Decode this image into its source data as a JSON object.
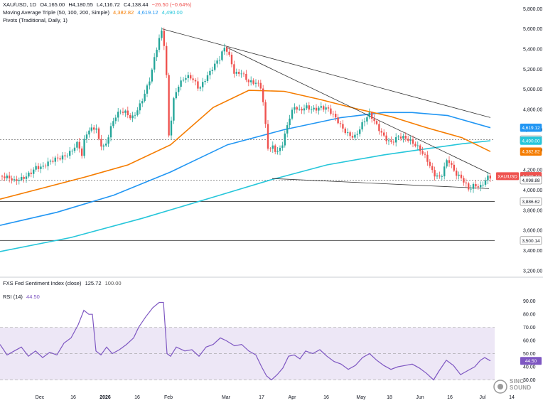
{
  "header": {
    "symbol_line": {
      "symbol": "XAU/USD, 1D",
      "open": "O4,165.00",
      "high": "H4,180.55",
      "low": "L4,116.72",
      "close": "C4,138.44",
      "change": "−26.50 (−0.64%)"
    },
    "ma_line": {
      "label": "Moving Average Triple (50, 100, 200, Simple)",
      "ma50": "4,382.82",
      "ma100": "4,619.12",
      "ma200": "4,490.00"
    },
    "pivots_label": "Pivots (Traditional, Daily, 1)",
    "sentiment_line": {
      "label": "FXS Fed Sentiment Index (close)",
      "value": "125.72",
      "ref": "100.00"
    },
    "rsi_line": {
      "label": "RSI (14)",
      "value": "44.50"
    }
  },
  "colors": {
    "up": "#26a69a",
    "down": "#ef5350",
    "ma50": "#f57c00",
    "ma100": "#2196f3",
    "ma200": "#26c6da",
    "rsi": "#7e57c2",
    "rsi_band": "#ede7f6",
    "trendline": "#333333"
  },
  "watermark": {
    "brand": "SINO SOUND"
  },
  "chart_data": [
    {
      "type": "candlestick",
      "title": "XAU/USD, 1D",
      "y_ticks": [
        "5,800.00",
        "5,600.00",
        "5,400.00",
        "5,200.00",
        "5,000.00",
        "4,800.00",
        "4,600.00",
        "4,400.00",
        "4,200.00",
        "4,000.00",
        "3,800.00",
        "3,600.00",
        "3,400.00",
        "3,200.00"
      ],
      "ylim": [
        3150,
        5830
      ],
      "x_ticks": [
        "Dec",
        "16",
        "2026",
        "16",
        "Feb",
        "Mar",
        "17",
        "Apr",
        "16",
        "May",
        "18",
        "Jun",
        "16",
        "Jul",
        "14"
      ],
      "price_labels": [
        {
          "value": 4619.12,
          "text": "4,619.12",
          "series": "ma100"
        },
        {
          "value": 4500.0,
          "text": "4,500.00",
          "series": "pivot"
        },
        {
          "value": 4490.0,
          "text": "4,490.00",
          "series": "ma200"
        },
        {
          "value": 4382.82,
          "text": "4,382.82",
          "series": "ma50"
        },
        {
          "value": 4138.44,
          "text": "4,138.44",
          "series": "price",
          "tag": "XAU/USD"
        },
        {
          "value": 4098.88,
          "text": "4,098.88",
          "series": "pivot"
        },
        {
          "value": 3886.62,
          "text": "3,886.62",
          "series": "pivot"
        },
        {
          "value": 3500.14,
          "text": "3,500.14",
          "series": "pivot"
        }
      ],
      "horizontal_levels": [
        4500.0,
        4098.88,
        3886.62,
        3500.14
      ],
      "close_path": [
        [
          0,
          4150
        ],
        [
          10,
          4100
        ],
        [
          20,
          4060
        ],
        [
          30,
          4120
        ],
        [
          40,
          4190
        ],
        [
          50,
          4240
        ],
        [
          60,
          4200
        ],
        [
          70,
          4250
        ],
        [
          80,
          4320
        ],
        [
          90,
          4370
        ],
        [
          100,
          4400
        ],
        [
          110,
          4450
        ],
        [
          115,
          4300
        ],
        [
          120,
          4520
        ],
        [
          128,
          4600
        ],
        [
          135,
          4650
        ],
        [
          140,
          4500
        ],
        [
          148,
          4450
        ],
        [
          155,
          4600
        ],
        [
          162,
          4700
        ],
        [
          170,
          4750
        ],
        [
          178,
          4760
        ],
        [
          185,
          4730
        ],
        [
          195,
          4850
        ],
        [
          205,
          4980
        ],
        [
          212,
          5100
        ],
        [
          218,
          5300
        ],
        [
          223,
          5450
        ],
        [
          228,
          5580
        ],
        [
          233,
          5350
        ],
        [
          238,
          4500
        ],
        [
          243,
          4900
        ],
        [
          250,
          5050
        ],
        [
          260,
          5100
        ],
        [
          270,
          5080
        ],
        [
          280,
          5000
        ],
        [
          290,
          5150
        ],
        [
          300,
          5250
        ],
        [
          310,
          5300
        ],
        [
          315,
          5380
        ],
        [
          320,
          5350
        ],
        [
          330,
          5150
        ],
        [
          340,
          5200
        ],
        [
          350,
          5100
        ],
        [
          360,
          5050
        ],
        [
          368,
          4980
        ],
        [
          373,
          4650
        ],
        [
          378,
          4350
        ],
        [
          383,
          4450
        ],
        [
          390,
          4400
        ],
        [
          398,
          4500
        ],
        [
          406,
          4700
        ],
        [
          414,
          4800
        ],
        [
          422,
          4750
        ],
        [
          430,
          4820
        ],
        [
          440,
          4830
        ],
        [
          450,
          4850
        ],
        [
          460,
          4800
        ],
        [
          470,
          4700
        ],
        [
          480,
          4620
        ],
        [
          490,
          4580
        ],
        [
          500,
          4560
        ],
        [
          510,
          4650
        ],
        [
          520,
          4720
        ],
        [
          530,
          4630
        ],
        [
          540,
          4560
        ],
        [
          550,
          4500
        ],
        [
          560,
          4520
        ],
        [
          570,
          4480
        ],
        [
          580,
          4460
        ],
        [
          590,
          4440
        ],
        [
          600,
          4350
        ],
        [
          610,
          4150
        ],
        [
          620,
          4080
        ],
        [
          630,
          4300
        ],
        [
          640,
          4200
        ],
        [
          650,
          4150
        ],
        [
          660,
          4000
        ],
        [
          668,
          4020
        ],
        [
          675,
          3990
        ],
        [
          682,
          4080
        ],
        [
          688,
          4160
        ],
        [
          695,
          4138
        ]
      ],
      "trendlines": [
        [
          [
            228,
            5600
          ],
          [
            690,
            4720
          ]
        ],
        [
          [
            318,
            5420
          ],
          [
            690,
            4160
          ]
        ],
        [
          [
            383,
            4115
          ],
          [
            688,
            4015
          ]
        ]
      ],
      "ma50": [
        [
          0,
          3910
        ],
        [
          60,
          4020
        ],
        [
          120,
          4130
        ],
        [
          180,
          4250
        ],
        [
          240,
          4450
        ],
        [
          300,
          4820
        ],
        [
          350,
          4990
        ],
        [
          400,
          4980
        ],
        [
          450,
          4900
        ],
        [
          500,
          4810
        ],
        [
          550,
          4730
        ],
        [
          600,
          4620
        ],
        [
          650,
          4520
        ],
        [
          690,
          4383
        ]
      ],
      "ma100": [
        [
          0,
          3650
        ],
        [
          80,
          3780
        ],
        [
          160,
          3950
        ],
        [
          240,
          4180
        ],
        [
          320,
          4450
        ],
        [
          400,
          4600
        ],
        [
          480,
          4720
        ],
        [
          540,
          4770
        ],
        [
          580,
          4770
        ],
        [
          630,
          4740
        ],
        [
          690,
          4619
        ]
      ],
      "ma200": [
        [
          0,
          3390
        ],
        [
          100,
          3530
        ],
        [
          200,
          3720
        ],
        [
          300,
          3930
        ],
        [
          380,
          4100
        ],
        [
          460,
          4250
        ],
        [
          540,
          4350
        ],
        [
          600,
          4410
        ],
        [
          650,
          4460
        ],
        [
          690,
          4490
        ]
      ]
    },
    {
      "type": "line",
      "title": "RSI (14)",
      "y_ticks": [
        "90.00",
        "80.00",
        "70.00",
        "60.00",
        "50.00",
        "40.00",
        "30.00"
      ],
      "ylim": [
        27,
        92
      ],
      "band": [
        30,
        70
      ],
      "ref_lines": [
        70,
        50,
        30
      ],
      "last_value": 44.5,
      "series": [
        [
          0,
          57
        ],
        [
          10,
          49
        ],
        [
          20,
          52
        ],
        [
          30,
          55
        ],
        [
          40,
          48
        ],
        [
          50,
          52
        ],
        [
          60,
          47
        ],
        [
          70,
          51
        ],
        [
          80,
          49
        ],
        [
          90,
          58
        ],
        [
          100,
          62
        ],
        [
          110,
          72
        ],
        [
          118,
          83
        ],
        [
          125,
          80
        ],
        [
          130,
          80
        ],
        [
          135,
          52
        ],
        [
          142,
          49
        ],
        [
          150,
          55
        ],
        [
          158,
          50
        ],
        [
          168,
          53
        ],
        [
          178,
          57
        ],
        [
          188,
          62
        ],
        [
          195,
          70
        ],
        [
          205,
          78
        ],
        [
          215,
          85
        ],
        [
          224,
          89
        ],
        [
          230,
          89
        ],
        [
          235,
          50
        ],
        [
          240,
          48
        ],
        [
          248,
          55
        ],
        [
          260,
          52
        ],
        [
          270,
          53
        ],
        [
          280,
          48
        ],
        [
          290,
          55
        ],
        [
          300,
          57
        ],
        [
          310,
          62
        ],
        [
          318,
          60
        ],
        [
          330,
          56
        ],
        [
          340,
          57
        ],
        [
          350,
          52
        ],
        [
          360,
          49
        ],
        [
          368,
          40
        ],
        [
          375,
          33
        ],
        [
          382,
          30
        ],
        [
          390,
          34
        ],
        [
          398,
          39
        ],
        [
          406,
          48
        ],
        [
          414,
          49
        ],
        [
          422,
          46
        ],
        [
          430,
          52
        ],
        [
          440,
          50
        ],
        [
          450,
          53
        ],
        [
          460,
          48
        ],
        [
          470,
          44
        ],
        [
          480,
          42
        ],
        [
          490,
          38
        ],
        [
          500,
          41
        ],
        [
          510,
          47
        ],
        [
          520,
          50
        ],
        [
          530,
          45
        ],
        [
          540,
          41
        ],
        [
          550,
          38
        ],
        [
          560,
          40
        ],
        [
          570,
          41
        ],
        [
          580,
          42
        ],
        [
          590,
          39
        ],
        [
          600,
          35
        ],
        [
          610,
          30
        ],
        [
          618,
          37
        ],
        [
          628,
          45
        ],
        [
          638,
          41
        ],
        [
          648,
          34
        ],
        [
          658,
          37
        ],
        [
          668,
          40
        ],
        [
          676,
          45
        ],
        [
          682,
          47
        ],
        [
          690,
          44.5
        ]
      ]
    }
  ]
}
